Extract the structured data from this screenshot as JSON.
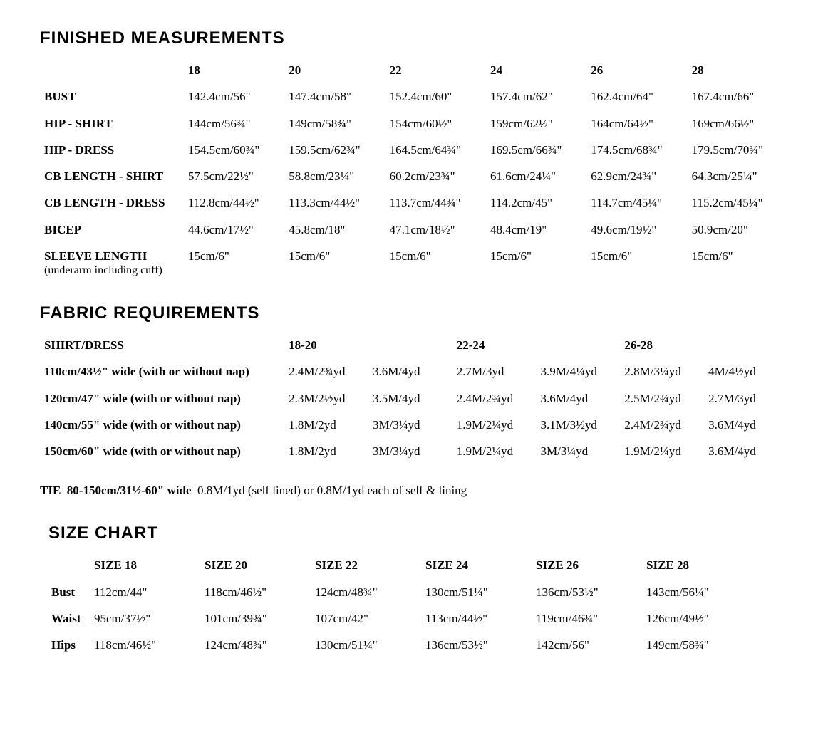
{
  "headings": {
    "finished_measurements": "FINISHED MEASUREMENTS",
    "fabric_requirements": "FABRIC REQUIREMENTS",
    "size_chart": "SIZE CHART"
  },
  "finished_measurements": {
    "columns": [
      "18",
      "20",
      "22",
      "24",
      "26",
      "28"
    ],
    "rows": [
      {
        "label": "BUST",
        "sub": "",
        "values": [
          "142.4cm/56\"",
          "147.4cm/58\"",
          "152.4cm/60\"",
          "157.4cm/62\"",
          "162.4cm/64\"",
          "167.4cm/66\""
        ]
      },
      {
        "label": "HIP - SHIRT",
        "sub": "",
        "values": [
          "144cm/56¾\"",
          "149cm/58¾\"",
          "154cm/60½\"",
          "159cm/62½\"",
          "164cm/64½\"",
          "169cm/66½\""
        ]
      },
      {
        "label": "HIP - DRESS",
        "sub": "",
        "values": [
          "154.5cm/60¾\"",
          "159.5cm/62¾\"",
          "164.5cm/64¾\"",
          "169.5cm/66¾\"",
          "174.5cm/68¾\"",
          "179.5cm/70¾\""
        ]
      },
      {
        "label": "CB LENGTH - SHIRT",
        "sub": "",
        "values": [
          "57.5cm/22½\"",
          "58.8cm/23¼\"",
          "60.2cm/23¾\"",
          "61.6cm/24¼\"",
          "62.9cm/24¾\"",
          "64.3cm/25¼\""
        ]
      },
      {
        "label": "CB LENGTH - DRESS",
        "sub": "",
        "values": [
          "112.8cm/44½\"",
          "113.3cm/44½\"",
          "113.7cm/44¾\"",
          "114.2cm/45\"",
          "114.7cm/45¼\"",
          "115.2cm/45¼\""
        ]
      },
      {
        "label": "BICEP",
        "sub": "",
        "values": [
          "44.6cm/17½\"",
          "45.8cm/18\"",
          "47.1cm/18½\"",
          "48.4cm/19\"",
          "49.6cm/19½\"",
          "50.9cm/20\""
        ]
      },
      {
        "label": "SLEEVE LENGTH",
        "sub": "(underarm including cuff)",
        "values": [
          "15cm/6\"",
          "15cm/6\"",
          "15cm/6\"",
          "15cm/6\"",
          "15cm/6\"",
          "15cm/6\""
        ]
      }
    ]
  },
  "fabric_requirements": {
    "shirt_dress_label": "SHIRT/DRESS",
    "group_columns": [
      "18-20",
      "22-24",
      "26-28"
    ],
    "rows": [
      {
        "label": "110cm/43½\" wide (with or without nap)",
        "values": [
          "2.4M/2¾yd",
          "3.6M/4yd",
          "2.7M/3yd",
          "3.9M/4¼yd",
          "2.8M/3¼yd",
          "4M/4½yd"
        ]
      },
      {
        "label": "120cm/47\" wide (with or without nap)",
        "values": [
          "2.3M/2½yd",
          "3.5M/4yd",
          "2.4M/2¾yd",
          "3.6M/4yd",
          "2.5M/2¾yd",
          "2.7M/3yd"
        ]
      },
      {
        "label": "140cm/55\" wide (with or without nap)",
        "values": [
          "1.8M/2yd",
          "3M/3¼yd",
          "1.9M/2¼yd",
          "3.1M/3½yd",
          "2.4M/2¾yd",
          "3.6M/4yd"
        ]
      },
      {
        "label": "150cm/60\" wide (with or without nap)",
        "values": [
          "1.8M/2yd",
          "3M/3¼yd",
          "1.9M/2¼yd",
          "3M/3¼yd",
          "1.9M/2¼yd",
          "3.6M/4yd"
        ]
      }
    ],
    "tie": {
      "prefix": "TIE",
      "width": "80-150cm/31½-60\" wide",
      "text": "0.8M/1yd (self lined) or 0.8M/1yd each of self & lining"
    }
  },
  "size_chart": {
    "columns": [
      "SIZE 18",
      "SIZE 20",
      "SIZE 22",
      "SIZE 24",
      "SIZE 26",
      "SIZE 28"
    ],
    "rows": [
      {
        "label": "Bust",
        "values": [
          "112cm/44\"",
          "118cm/46½\"",
          "124cm/48¾\"",
          "130cm/51¼\"",
          "136cm/53½\"",
          "143cm/56¼\""
        ]
      },
      {
        "label": "Waist",
        "values": [
          "95cm/37½\"",
          "101cm/39¾\"",
          "107cm/42\"",
          "113cm/44½\"",
          "119cm/46¾\"",
          "126cm/49½\""
        ]
      },
      {
        "label": "Hips",
        "values": [
          "118cm/46½\"",
          "124cm/48¾\"",
          "130cm/51¼\"",
          "136cm/53½\"",
          "142cm/56\"",
          "149cm/58¾\""
        ]
      }
    ]
  },
  "style": {
    "background_color": "#ffffff",
    "text_color": "#000000",
    "heading_font": "Arial Black",
    "body_font": "Times New Roman",
    "heading_fontsize_pt": 18,
    "body_fontsize_pt": 13
  }
}
